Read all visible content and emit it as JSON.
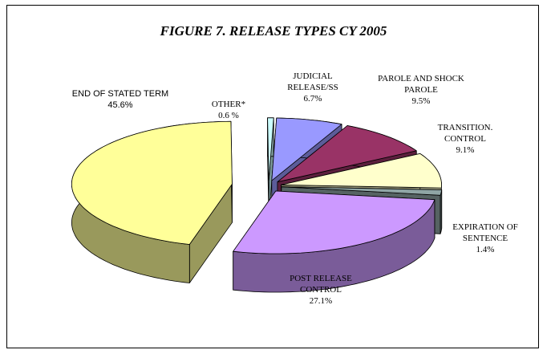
{
  "chart_data": {
    "type": "pie3d",
    "title": "FIGURE 7. RELEASE TYPES CY 2005",
    "categories": [
      "JUDICIAL RELEASE/SS",
      "PAROLE AND SHOCK PAROLE",
      "TRANSITION. CONTROL",
      "EXPIRATION OF SENTENCE",
      "POST RELEASE CONTROL",
      "END OF STATED TERM",
      "OTHER*"
    ],
    "values": [
      6.7,
      9.5,
      9.1,
      1.4,
      27.1,
      45.6,
      0.6
    ],
    "value_labels": [
      "6.7%",
      "9.5%",
      "9.1%",
      "1.4%",
      "27.1%",
      "45.6%",
      "0.6 %"
    ],
    "colors": [
      "#9999ff",
      "#993366",
      "#ffffcc",
      "#8fa5a5",
      "#cc99ff",
      "#ffff99",
      "#ccffff"
    ]
  }
}
